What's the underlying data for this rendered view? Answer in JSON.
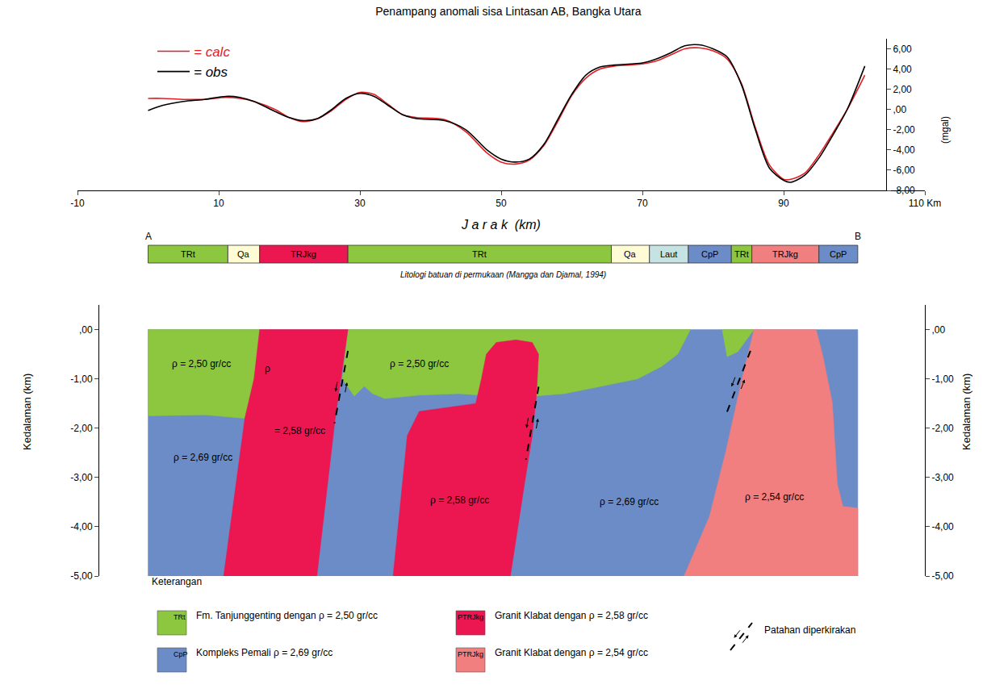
{
  "chart_data": [
    {
      "type": "line",
      "title": "Penampang anomali sisa Lintasan AB, Bangka Utara",
      "x_label": "J a r a k  (km)",
      "y_label": "(mgal)",
      "xlim": [
        -10,
        110
      ],
      "xticks": [
        -10,
        10,
        30,
        50,
        70,
        90,
        {
          "value": 110,
          "label": "110 Km"
        }
      ],
      "ylim": [
        -8,
        7
      ],
      "yticks": [
        {
          "value": 6,
          "label": "6,00"
        },
        {
          "value": 4,
          "label": "4,00"
        },
        {
          "value": 2,
          "label": "2,00"
        },
        {
          "value": 0,
          "label": ",00"
        },
        {
          "value": -2,
          "label": "-2,00"
        },
        {
          "value": -4,
          "label": "-4,00"
        },
        {
          "value": -6,
          "label": "-6,00"
        },
        {
          "value": -8,
          "label": "-8,00"
        }
      ],
      "grid": false,
      "legend": "top left",
      "x": [
        0,
        2,
        5,
        8,
        11,
        13,
        15,
        18,
        20,
        22,
        24,
        26,
        28,
        30,
        32,
        34,
        36,
        38,
        42,
        45,
        48,
        50,
        52,
        54,
        56,
        58,
        60,
        62,
        64,
        66,
        70,
        72,
        74,
        76,
        78,
        80,
        82,
        84,
        86,
        88,
        90,
        91,
        93,
        95,
        97,
        99,
        101.5
      ],
      "series": [
        {
          "name": "= calc",
          "color": "#e31e24",
          "values": [
            1.1,
            1.1,
            1.0,
            1.0,
            1.2,
            1.1,
            0.8,
            0.0,
            -0.8,
            -1.2,
            -0.9,
            -0.1,
            1.0,
            1.7,
            1.5,
            0.5,
            -0.5,
            -0.8,
            -1.0,
            -2.2,
            -4.3,
            -5.2,
            -5.4,
            -5.0,
            -3.6,
            -1.2,
            1.4,
            3.1,
            4.0,
            4.3,
            4.5,
            4.8,
            5.4,
            6.0,
            6.1,
            5.8,
            5.0,
            2.6,
            -1.8,
            -5.5,
            -6.9,
            -6.9,
            -6.3,
            -4.5,
            -2.3,
            0.0,
            3.4
          ]
        },
        {
          "name": "= obs",
          "color": "#000000",
          "values": [
            -0.1,
            0.4,
            0.8,
            1.0,
            1.3,
            1.2,
            0.8,
            -0.2,
            -0.8,
            -1.1,
            -0.9,
            0.0,
            1.1,
            1.6,
            1.3,
            0.4,
            -0.5,
            -0.9,
            -1.1,
            -2.0,
            -4.0,
            -4.9,
            -5.2,
            -4.9,
            -3.5,
            -1.0,
            1.5,
            3.4,
            4.2,
            4.4,
            4.6,
            5.0,
            5.6,
            6.3,
            6.4,
            6.0,
            5.2,
            2.5,
            -2.0,
            -5.8,
            -7.0,
            -7.2,
            -6.5,
            -4.8,
            -2.5,
            0.0,
            4.3
          ]
        }
      ]
    },
    {
      "type": "strip",
      "start_label": "A",
      "end_label": "B",
      "caption": "Litologi batuan di permukaan (Mangga dan Djamal, 1994)",
      "segments": [
        {
          "label": "TRt",
          "from": 0,
          "to": 11.3,
          "color": "#8dc63f"
        },
        {
          "label": "Qa",
          "from": 11.3,
          "to": 15.8,
          "color": "#fffbd5"
        },
        {
          "label": "TRJkg",
          "from": 15.8,
          "to": 28.3,
          "color": "#ec1651"
        },
        {
          "label": "TRt",
          "from": 28.3,
          "to": 65.6,
          "color": "#8dc63f"
        },
        {
          "label": "Qa",
          "from": 65.6,
          "to": 71.0,
          "color": "#fffbd5"
        },
        {
          "label": "Laut",
          "from": 71.0,
          "to": 76.5,
          "color": "#c6e3e4"
        },
        {
          "label": "CpP",
          "from": 76.5,
          "to": 82.6,
          "color": "#6b8cc6"
        },
        {
          "label": "TRt",
          "from": 82.6,
          "to": 85.5,
          "color": "#8dc63f"
        },
        {
          "label": "TRJkg",
          "from": 85.5,
          "to": 95.0,
          "color": "#f17f7f"
        },
        {
          "label": "CpP",
          "from": 95.0,
          "to": 100.5,
          "color": "#6b8cc6"
        }
      ]
    },
    {
      "type": "cross_section",
      "y_label": "Kedalaman (km)",
      "ylim": [
        -5,
        0.5
      ],
      "yticks": [
        {
          "value": 0,
          "label": ",00"
        },
        {
          "value": -1,
          "label": "-1,00"
        },
        {
          "value": -2,
          "label": "-2,00"
        },
        {
          "value": -3,
          "label": "-3,00"
        },
        {
          "value": -4,
          "label": "-4,00"
        },
        {
          "value": -5,
          "label": "-5,00"
        }
      ],
      "tick_labels": "y",
      "bodies": [
        {
          "color": "#6b8cc6",
          "x": [
            0,
            100.5,
            100.5,
            0
          ],
          "y": [
            0,
            0,
            -5,
            -5
          ]
        },
        {
          "color": "#8dc63f",
          "x": [
            0,
            15.8,
            15.0,
            13.7,
            8,
            0
          ],
          "y": [
            0,
            0,
            -1.0,
            -1.8,
            -1.73,
            -1.75
          ]
        },
        {
          "color": "#8dc63f",
          "x": [
            28.3,
            76.8,
            75,
            72.7,
            69.3,
            64.7,
            59,
            52,
            44,
            38.4,
            33.5,
            31.8,
            30.6,
            29.2,
            27.5
          ],
          "y": [
            0,
            0,
            -0.5,
            -0.75,
            -1.0,
            -1.13,
            -1.3,
            -1.38,
            -1.3,
            -1.33,
            -1.4,
            -1.3,
            -1.15,
            -1.35,
            -1.0
          ]
        },
        {
          "color": "#ec1651",
          "x": [
            15.8,
            28.3,
            26.5,
            23.9,
            10.7,
            13.7,
            15.0
          ],
          "y": [
            0,
            0,
            -1.8,
            -5,
            -5,
            -1.8,
            -1.0
          ]
        },
        {
          "color": "#ec1651",
          "x": [
            34.7,
            36.7,
            38.4,
            43,
            46.4,
            47.2,
            47.9,
            49.3,
            52.1,
            54.4,
            55.3,
            55,
            54.4,
            53.3,
            51.5,
            51.3
          ],
          "y": [
            -5,
            -2.15,
            -1.66,
            -1.57,
            -1.5,
            -1.0,
            -0.5,
            -0.26,
            -0.21,
            -0.26,
            -0.5,
            -1.33,
            -2.15,
            -3.13,
            -4.85,
            -5
          ]
        },
        {
          "color": "#8dc63f",
          "x": [
            81.3,
            85.8,
            83.5,
            82
          ],
          "y": [
            0,
            0,
            -0.45,
            -0.55
          ]
        },
        {
          "color": "#f17f7f",
          "x": [
            85.8,
            84.1,
            81.8,
            79.5,
            75.9,
            100.5,
            100.5,
            98.4,
            97.6,
            96.9,
            95.5,
            94.6
          ],
          "y": [
            0,
            -1.0,
            -2.48,
            -3.79,
            -5,
            -5,
            -3.62,
            -3.59,
            -3.13,
            -1.49,
            -0.5,
            0
          ]
        }
      ],
      "labels": [
        {
          "text": "ρ = 2,50 gr/cc",
          "x": 7.5,
          "y": -0.7
        },
        {
          "text": "ρ",
          "x": 16.9,
          "y": -0.8
        },
        {
          "text": "= 2,58 gr/cc",
          "x": 21.5,
          "y": -2.05
        },
        {
          "text": "ρ = 2,50 gr/cc",
          "x": 38.4,
          "y": -0.7
        },
        {
          "text": "ρ = 2,69 gr/cc",
          "x": 7.8,
          "y": -2.6
        },
        {
          "text": "ρ = 2,58 gr/cc",
          "x": 44.1,
          "y": -3.46
        },
        {
          "text": "ρ = 2,69 gr/cc",
          "x": 68.1,
          "y": -3.5
        },
        {
          "text": "ρ = 2,54 gr/cc",
          "x": 88.7,
          "y": -3.4
        }
      ],
      "faults": [
        {
          "x": [
            28.3,
            26.4
          ],
          "y": [
            -0.43,
            -1.9
          ]
        },
        {
          "x": [
            55.3,
            53.5
          ],
          "y": [
            -1.16,
            -2.64
          ]
        },
        {
          "x": [
            85.3,
            81.8
          ],
          "y": [
            -0.43,
            -1.74
          ]
        }
      ],
      "key": {
        "title": "Keterangan",
        "items": [
          {
            "symbol": "TRt",
            "text": "Fm. Tanjunggenting dengan ρ = 2,50 gr/cc",
            "color": "#8dc63f"
          },
          {
            "symbol": "CpP",
            "text": "Kompleks Pemali ρ = 2,69 gr/cc",
            "color": "#6b8cc6"
          },
          {
            "symbol": "PTRJkg",
            "text": "Granit Klabat dengan ρ = 2,58 gr/cc",
            "color": "#ec1651"
          },
          {
            "symbol": "PTRJkg",
            "text": "Granit Klabat dengan ρ = 2,54 gr/cc",
            "color": "#f17f7f"
          }
        ],
        "fault_text": "Patahan diperkirakan"
      }
    }
  ]
}
